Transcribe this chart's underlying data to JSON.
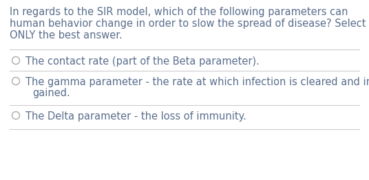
{
  "background_color": "#ffffff",
  "question_lines": [
    "In regards to the SIR model, which of the following parameters can",
    "human behavior change in order to slow the spread of disease? Select",
    "ONLY the best answer."
  ],
  "question_color": "#5a6e8c",
  "option1_line1": "The contact rate (part of the Beta parameter).",
  "option2_line1": "The gamma parameter - the rate at which infection is cleared and immunity is",
  "option2_line2": "    gained.",
  "option3_line1": "The Delta parameter - the loss of immunity.",
  "option_color": "#5a6e8c",
  "line_color": "#cccccc",
  "circle_color": "#aaaaaa",
  "font_size_question": 10.5,
  "font_size_option": 10.5
}
